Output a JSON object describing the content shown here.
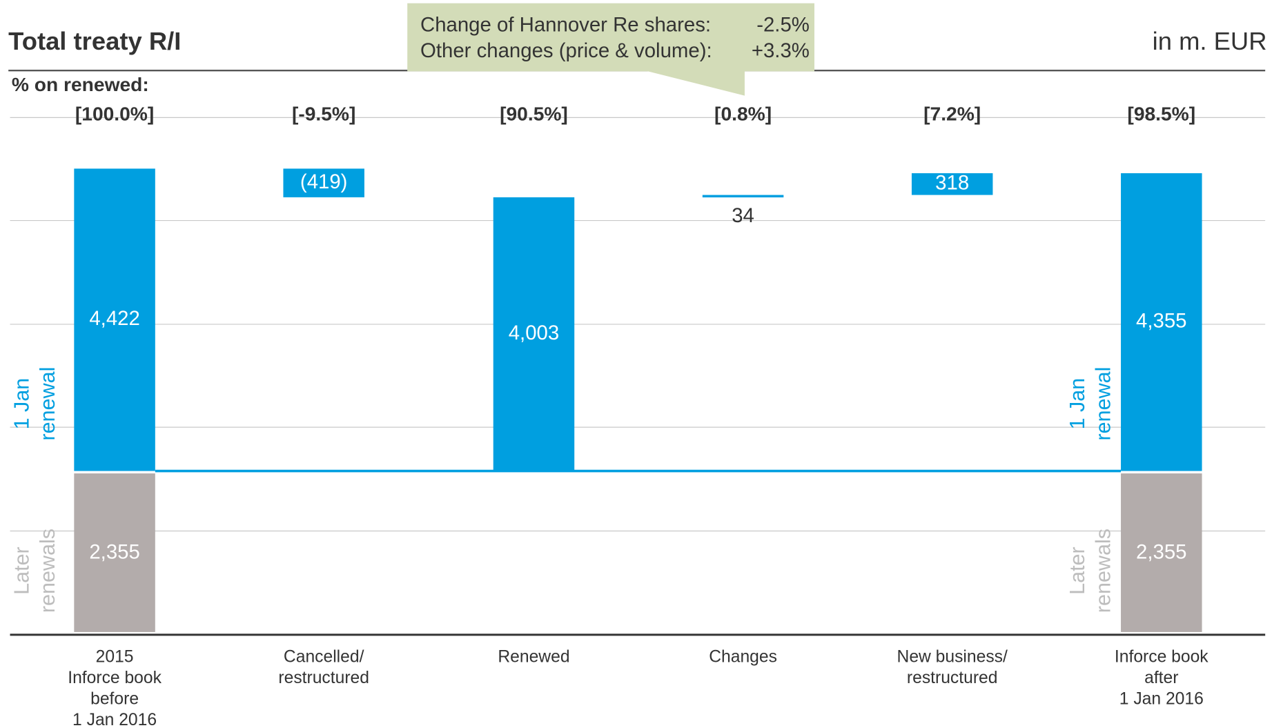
{
  "chart_data": {
    "type": "waterfall",
    "title": "Total treaty R/I",
    "unit": "in m. EUR",
    "percent_heading": "% on renewed:",
    "callout": [
      [
        "Change of Hannover Re shares:",
        "-2.5%"
      ],
      [
        "Other changes (price & volume):",
        "+3.3%"
      ]
    ],
    "categories": [
      [
        "2015",
        "Inforce book",
        "before",
        "1 Jan 2016"
      ],
      [
        "Cancelled/",
        "restructured"
      ],
      [
        "Renewed"
      ],
      [
        "Changes"
      ],
      [
        "New business/",
        "restructured"
      ],
      [
        "Inforce book",
        "after",
        "1 Jan 2016"
      ]
    ],
    "percent_labels": [
      "[100.0%]",
      "[-9.5%]",
      "[90.5%]",
      "[0.8%]",
      "[7.2%]",
      "[98.5%]"
    ],
    "measure": [
      "total",
      "relative",
      "total",
      "relative",
      "relative",
      "total"
    ],
    "series": [
      {
        "name": [
          "1 Jan",
          "renewal"
        ],
        "color": "#009fe0",
        "values": [
          4422,
          -419,
          4003,
          34,
          318,
          4355
        ],
        "value_labels": [
          "4,422",
          "(419)",
          "4,003",
          "34",
          "318",
          "4,355"
        ]
      },
      {
        "name": [
          "Later",
          "renewals"
        ],
        "color": "#b3acab",
        "values": [
          2355,
          null,
          null,
          null,
          null,
          2355
        ],
        "value_labels": [
          "2,355",
          null,
          null,
          null,
          null,
          "2,355"
        ]
      }
    ],
    "ylim": [
      -2400,
      5200
    ]
  }
}
